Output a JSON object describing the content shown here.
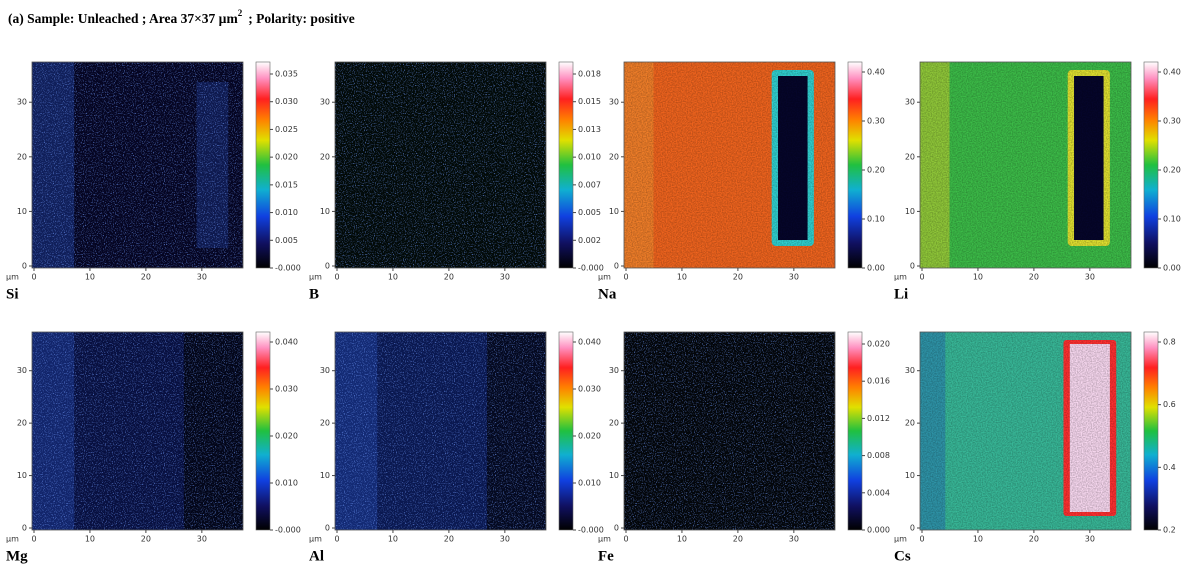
{
  "header": {
    "title": {
      "prefix": "(a) Sample: Unleached ; Area 37×37 µm",
      "superscript": "2",
      "suffix": "; Polarity:  positive"
    }
  },
  "axis_unit": "µm",
  "panels": [
    {
      "label": "Si",
      "xticks": [
        "0",
        "10",
        "20",
        "30"
      ],
      "yticks": [
        "0",
        "10",
        "20",
        "30"
      ],
      "scale": [
        "0.035",
        "0.030",
        "0.025",
        "0.020",
        "0.015",
        "0.010",
        "0.005",
        "-0.000"
      ]
    },
    {
      "label": "B",
      "xticks": [
        "0",
        "10",
        "20",
        "30"
      ],
      "yticks": [
        "0",
        "10",
        "20",
        "30"
      ],
      "scale": [
        "0.018",
        "0.015",
        "0.013",
        "0.010",
        "0.007",
        "0.005",
        "0.002",
        "-0.000"
      ]
    },
    {
      "label": "Na",
      "xticks": [
        "0",
        "10",
        "20",
        "30"
      ],
      "yticks": [
        "0",
        "10",
        "20",
        "30"
      ],
      "scale": [
        "0.40",
        "0.30",
        "0.20",
        "0.10",
        "0.00"
      ]
    },
    {
      "label": "Li",
      "xticks": [
        "0",
        "10",
        "20",
        "30"
      ],
      "yticks": [
        "0",
        "10",
        "20",
        "30"
      ],
      "scale": [
        "0.40",
        "0.30",
        "0.20",
        "0.10",
        "0.00"
      ]
    },
    {
      "label": "Mg",
      "xticks": [
        "0",
        "10",
        "20",
        "30"
      ],
      "yticks": [
        "0",
        "10",
        "20",
        "30"
      ],
      "scale": [
        "0.040",
        "0.030",
        "0.020",
        "0.010",
        "-0.000"
      ]
    },
    {
      "label": "Al",
      "xticks": [
        "0",
        "10",
        "20",
        "30"
      ],
      "yticks": [
        "0",
        "10",
        "20",
        "30"
      ],
      "scale": [
        "0.040",
        "0.030",
        "0.020",
        "0.010",
        "-0.000"
      ]
    },
    {
      "label": "Fe",
      "xticks": [
        "0",
        "10",
        "20",
        "30"
      ],
      "yticks": [
        "0",
        "10",
        "20",
        "30"
      ],
      "scale": [
        "0.020",
        "0.016",
        "0.012",
        "0.008",
        "0.004",
        "0.000"
      ]
    },
    {
      "label": "Cs",
      "xticks": [
        "0",
        "10",
        "20",
        "30"
      ],
      "yticks": [
        "0",
        "10",
        "20",
        "30"
      ],
      "scale": [
        "0.8",
        "0.6",
        "0.4",
        "0.2"
      ]
    }
  ]
}
